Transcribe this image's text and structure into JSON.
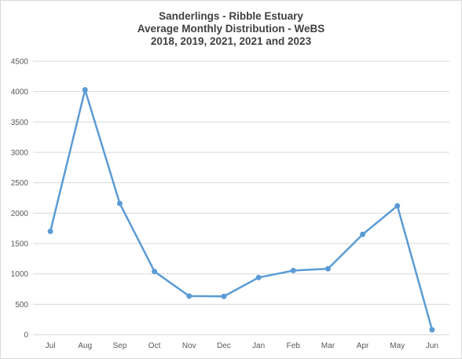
{
  "chart_data": {
    "type": "line",
    "title": [
      "Sanderlings - Ribble Estuary",
      "Average Monthly Distribution - WeBS",
      "2018, 2019, 2021, 2021 and 2023"
    ],
    "categories": [
      "Jul",
      "Aug",
      "Sep",
      "Oct",
      "Nov",
      "Dec",
      "Jan",
      "Feb",
      "Mar",
      "Apr",
      "May",
      "Jun"
    ],
    "series": [
      {
        "values": [
          1700,
          4030,
          2160,
          1040,
          635,
          630,
          940,
          1055,
          1085,
          1650,
          2120,
          80
        ]
      }
    ],
    "ylim": [
      0,
      4500
    ],
    "yticks": [
      "0",
      "500",
      "1000",
      "1500",
      "2000",
      "2500",
      "3000",
      "3500",
      "4000",
      "4500"
    ],
    "grid": true,
    "legend": "none",
    "colors": {
      "series": "#5b9bd5",
      "grid": "#d9d9d9",
      "text": "#595959",
      "title": "#404040"
    }
  }
}
